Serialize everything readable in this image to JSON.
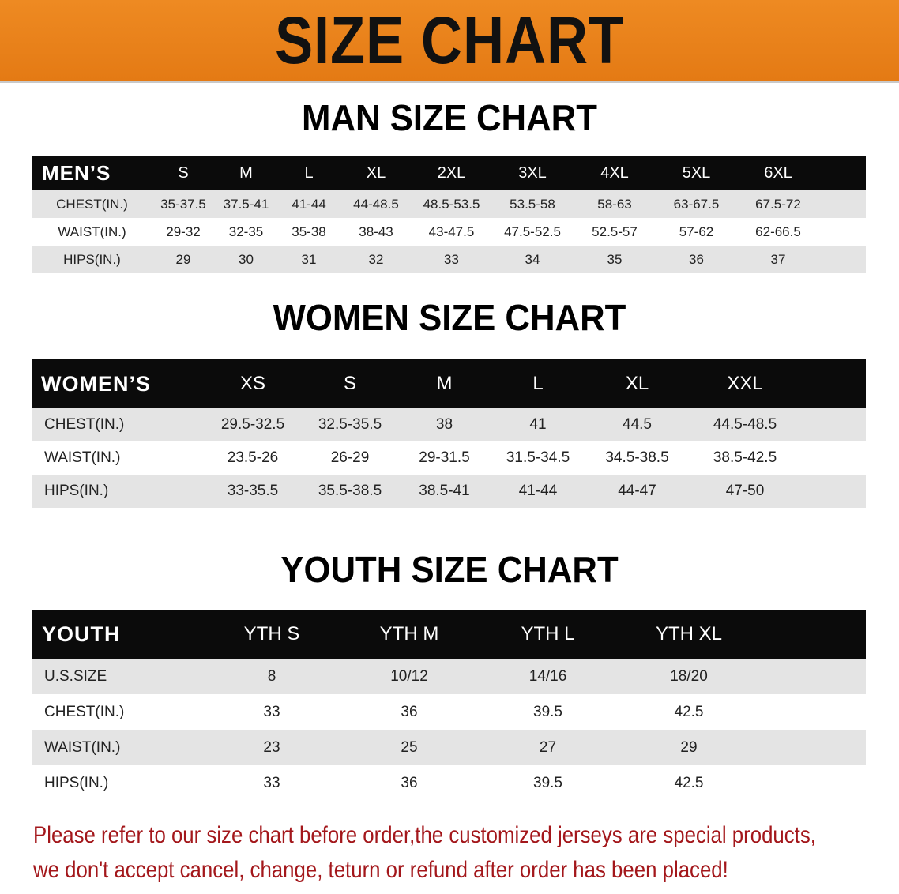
{
  "title": "SIZE CHART",
  "colors": {
    "banner": "#e8821a",
    "header_row": "#0b0b0b",
    "alt_row": "#e4e4e4",
    "note": "#a3171b"
  },
  "men": {
    "heading": "MAN SIZE CHART",
    "columns": [
      "MEN’S",
      "S",
      "M",
      "L",
      "XL",
      "2XL",
      "3XL",
      "4XL",
      "5XL",
      "6XL"
    ],
    "rows": [
      [
        "CHEST(IN.)",
        "35-37.5",
        "37.5-41",
        "41-44",
        "44-48.5",
        "48.5-53.5",
        "53.5-58",
        "58-63",
        "63-67.5",
        "67.5-72"
      ],
      [
        "WAIST(IN.)",
        "29-32",
        "32-35",
        "35-38",
        "38-43",
        "43-47.5",
        "47.5-52.5",
        "52.5-57",
        "57-62",
        "62-66.5"
      ],
      [
        "HIPS(IN.)",
        "29",
        "30",
        "31",
        "32",
        "33",
        "34",
        "35",
        "36",
        "37"
      ]
    ]
  },
  "women": {
    "heading": "WOMEN SIZE CHART",
    "columns": [
      "WOMEN’S",
      "XS",
      "S",
      "M",
      "L",
      "XL",
      "XXL"
    ],
    "rows": [
      [
        "CHEST(IN.)",
        "29.5-32.5",
        "32.5-35.5",
        "38",
        "41",
        "44.5",
        "44.5-48.5"
      ],
      [
        "WAIST(IN.)",
        "23.5-26",
        "26-29",
        "29-31.5",
        "31.5-34.5",
        "34.5-38.5",
        "38.5-42.5"
      ],
      [
        "HIPS(IN.)",
        "33-35.5",
        "35.5-38.5",
        "38.5-41",
        "41-44",
        "44-47",
        "47-50"
      ]
    ]
  },
  "youth": {
    "heading": "YOUTH SIZE CHART",
    "columns": [
      "YOUTH",
      "YTH S",
      "YTH M",
      "YTH L",
      "YTH XL"
    ],
    "rows": [
      [
        "U.S.SIZE",
        "8",
        "10/12",
        "14/16",
        "18/20"
      ],
      [
        "CHEST(IN.)",
        "33",
        "36",
        "39.5",
        "42.5"
      ],
      [
        "WAIST(IN.)",
        "23",
        "25",
        "27",
        "29"
      ],
      [
        "HIPS(IN.)",
        "33",
        "36",
        "39.5",
        "42.5"
      ]
    ]
  },
  "note": {
    "line1": "Please refer to our size chart before order,the customized jerseys are special products,",
    "line2": "we don't accept cancel, change, teturn or refund after order has been placed!"
  }
}
